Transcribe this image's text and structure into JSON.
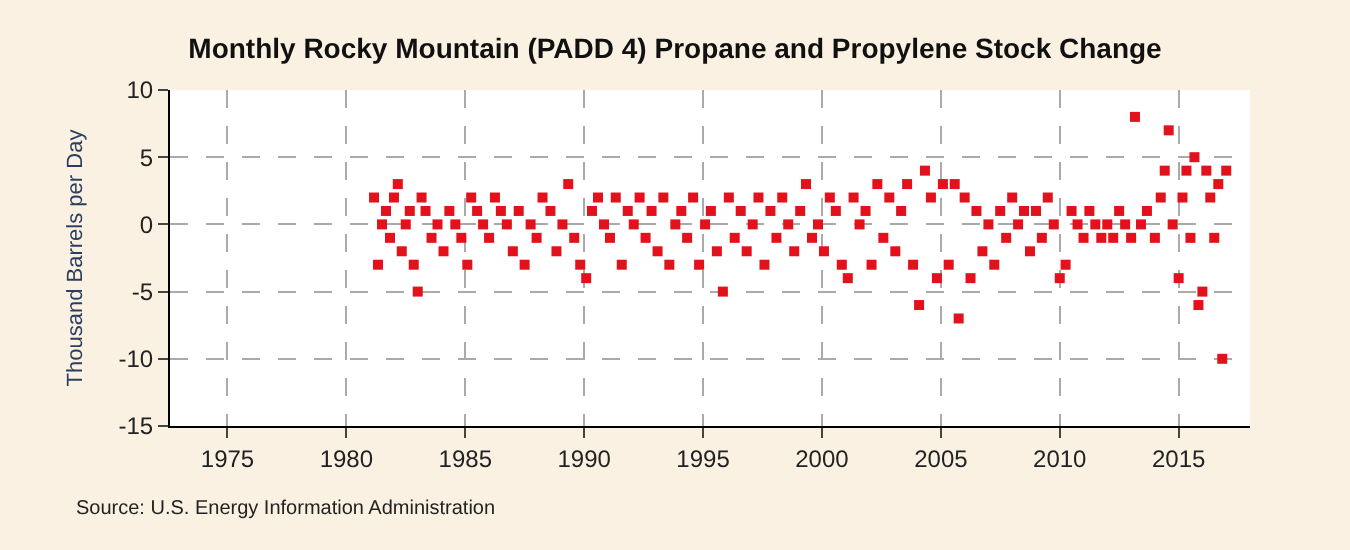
{
  "chart_data": {
    "type": "scatter",
    "title": "Monthly Rocky Mountain (PADD 4) Propane and Propylene Stock Change",
    "ylabel": "Thousand Barrels per Day",
    "annotations": [
      "Source: U.S. Energy Information Administration"
    ],
    "x": [
      "1981-03",
      "1981-05",
      "1981-07",
      "1981-09",
      "1981-11",
      "1982-01",
      "1982-03",
      "1982-05",
      "1982-07",
      "1982-09",
      "1982-11",
      "1983-01",
      "1983-03",
      "1983-05",
      "1983-08",
      "1983-11",
      "1984-02",
      "1984-05",
      "1984-08",
      "1984-11",
      "1985-02",
      "1985-04",
      "1985-07",
      "1985-10",
      "1986-01",
      "1986-04",
      "1986-07",
      "1986-10",
      "1987-01",
      "1987-04",
      "1987-07",
      "1987-10",
      "1988-01",
      "1988-04",
      "1988-08",
      "1988-11",
      "1989-02",
      "1989-05",
      "1989-08",
      "1989-11",
      "1990-02",
      "1990-05",
      "1990-08",
      "1990-11",
      "1991-02",
      "1991-05",
      "1991-08",
      "1991-11",
      "1992-02",
      "1992-05",
      "1992-08",
      "1992-11",
      "1993-02",
      "1993-05",
      "1993-08",
      "1993-11",
      "1994-02",
      "1994-05",
      "1994-08",
      "1994-11",
      "1995-02",
      "1995-05",
      "1995-08",
      "1995-11",
      "1996-02",
      "1996-05",
      "1996-08",
      "1996-11",
      "1997-02",
      "1997-05",
      "1997-08",
      "1997-11",
      "1998-02",
      "1998-05",
      "1998-08",
      "1998-11",
      "1999-02",
      "1999-05",
      "1999-08",
      "1999-11",
      "2000-02",
      "2000-05",
      "2000-08",
      "2000-11",
      "2001-02",
      "2001-05",
      "2001-08",
      "2001-11",
      "2002-02",
      "2002-05",
      "2002-08",
      "2002-11",
      "2003-02",
      "2003-05",
      "2003-08",
      "2003-11",
      "2004-02",
      "2004-05",
      "2004-08",
      "2004-11",
      "2005-02",
      "2005-05",
      "2005-08",
      "2005-10",
      "2006-01",
      "2006-04",
      "2006-07",
      "2006-10",
      "2007-01",
      "2007-04",
      "2007-07",
      "2007-10",
      "2008-01",
      "2008-04",
      "2008-07",
      "2008-10",
      "2009-01",
      "2009-04",
      "2009-07",
      "2009-10",
      "2010-01",
      "2010-04",
      "2010-07",
      "2010-10",
      "2011-01",
      "2011-04",
      "2011-07",
      "2011-10",
      "2012-01",
      "2012-04",
      "2012-07",
      "2012-10",
      "2013-01",
      "2013-03",
      "2013-06",
      "2013-09",
      "2014-01",
      "2014-04",
      "2014-06",
      "2014-08",
      "2014-10",
      "2015-01",
      "2015-03",
      "2015-05",
      "2015-07",
      "2015-09",
      "2015-11",
      "2016-01",
      "2016-03",
      "2016-05",
      "2016-07",
      "2016-09",
      "2016-11",
      "2017-01"
    ],
    "series": [
      {
        "color": "#e3111b",
        "values": [
          2,
          -3,
          0,
          1,
          -1,
          2,
          3,
          -2,
          0,
          1,
          -3,
          -5,
          2,
          1,
          -1,
          0,
          -2,
          1,
          0,
          -1,
          -3,
          2,
          1,
          0,
          -1,
          2,
          1,
          0,
          -2,
          1,
          -3,
          0,
          -1,
          2,
          1,
          -2,
          0,
          3,
          -1,
          -3,
          -4,
          1,
          2,
          0,
          -1,
          2,
          -3,
          1,
          0,
          2,
          -1,
          1,
          -2,
          2,
          -3,
          0,
          1,
          -1,
          2,
          -3,
          0,
          1,
          -2,
          -5,
          2,
          -1,
          1,
          -2,
          0,
          2,
          -3,
          1,
          -1,
          2,
          0,
          -2,
          1,
          3,
          -1,
          0,
          -2,
          2,
          1,
          -3,
          -4,
          2,
          0,
          1,
          -3,
          3,
          -1,
          2,
          -2,
          1,
          3,
          -3,
          -6,
          4,
          2,
          -4,
          3,
          -3,
          3,
          -7,
          2,
          -4,
          1,
          -2,
          0,
          -3,
          1,
          -1,
          2,
          0,
          1,
          -2,
          1,
          -1,
          2,
          0,
          -4,
          -3,
          1,
          0,
          -1,
          1,
          0,
          -1,
          0,
          -1,
          1,
          0,
          -1,
          8,
          0,
          1,
          -1,
          2,
          4,
          7,
          0,
          -4,
          2,
          4,
          -1,
          5,
          -6,
          -5,
          4,
          2,
          -1,
          3,
          -10,
          4
        ]
      }
    ],
    "xlim": [
      "1972-08",
      "2018-01"
    ],
    "xticks": [
      {
        "value": "1975",
        "label": "1975"
      },
      {
        "value": "1980",
        "label": "1980"
      },
      {
        "value": "1985",
        "label": "1985"
      },
      {
        "value": "1990",
        "label": "1990"
      },
      {
        "value": "1995",
        "label": "1995"
      },
      {
        "value": "2000",
        "label": "2000"
      },
      {
        "value": "2005",
        "label": "2005"
      },
      {
        "value": "2010",
        "label": "2010"
      },
      {
        "value": "2015",
        "label": "2015"
      }
    ],
    "ylim": [
      -15,
      10
    ],
    "yticks": [
      -15,
      -10,
      -5,
      0,
      5,
      10
    ],
    "grid": true,
    "marker": "square"
  }
}
